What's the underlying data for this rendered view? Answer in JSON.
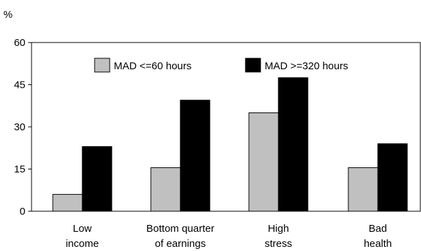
{
  "chart_data": {
    "type": "bar",
    "ylabel": "%",
    "ylim": [
      0,
      60
    ],
    "yticks": [
      0,
      15,
      30,
      45,
      60
    ],
    "categories": [
      [
        "Low",
        "income"
      ],
      [
        "Bottom quarter",
        "of earnings"
      ],
      [
        "High",
        "stress"
      ],
      [
        "Bad",
        "health"
      ]
    ],
    "series": [
      {
        "name": "MAD <=60 hours",
        "color": "#c0c0c0",
        "values": [
          6,
          15.5,
          35,
          15.5
        ]
      },
      {
        "name": "MAD >=320 hours",
        "color": "#000000",
        "values": [
          23,
          39.5,
          47.5,
          24
        ]
      }
    ],
    "legend": "top",
    "grid": false
  }
}
